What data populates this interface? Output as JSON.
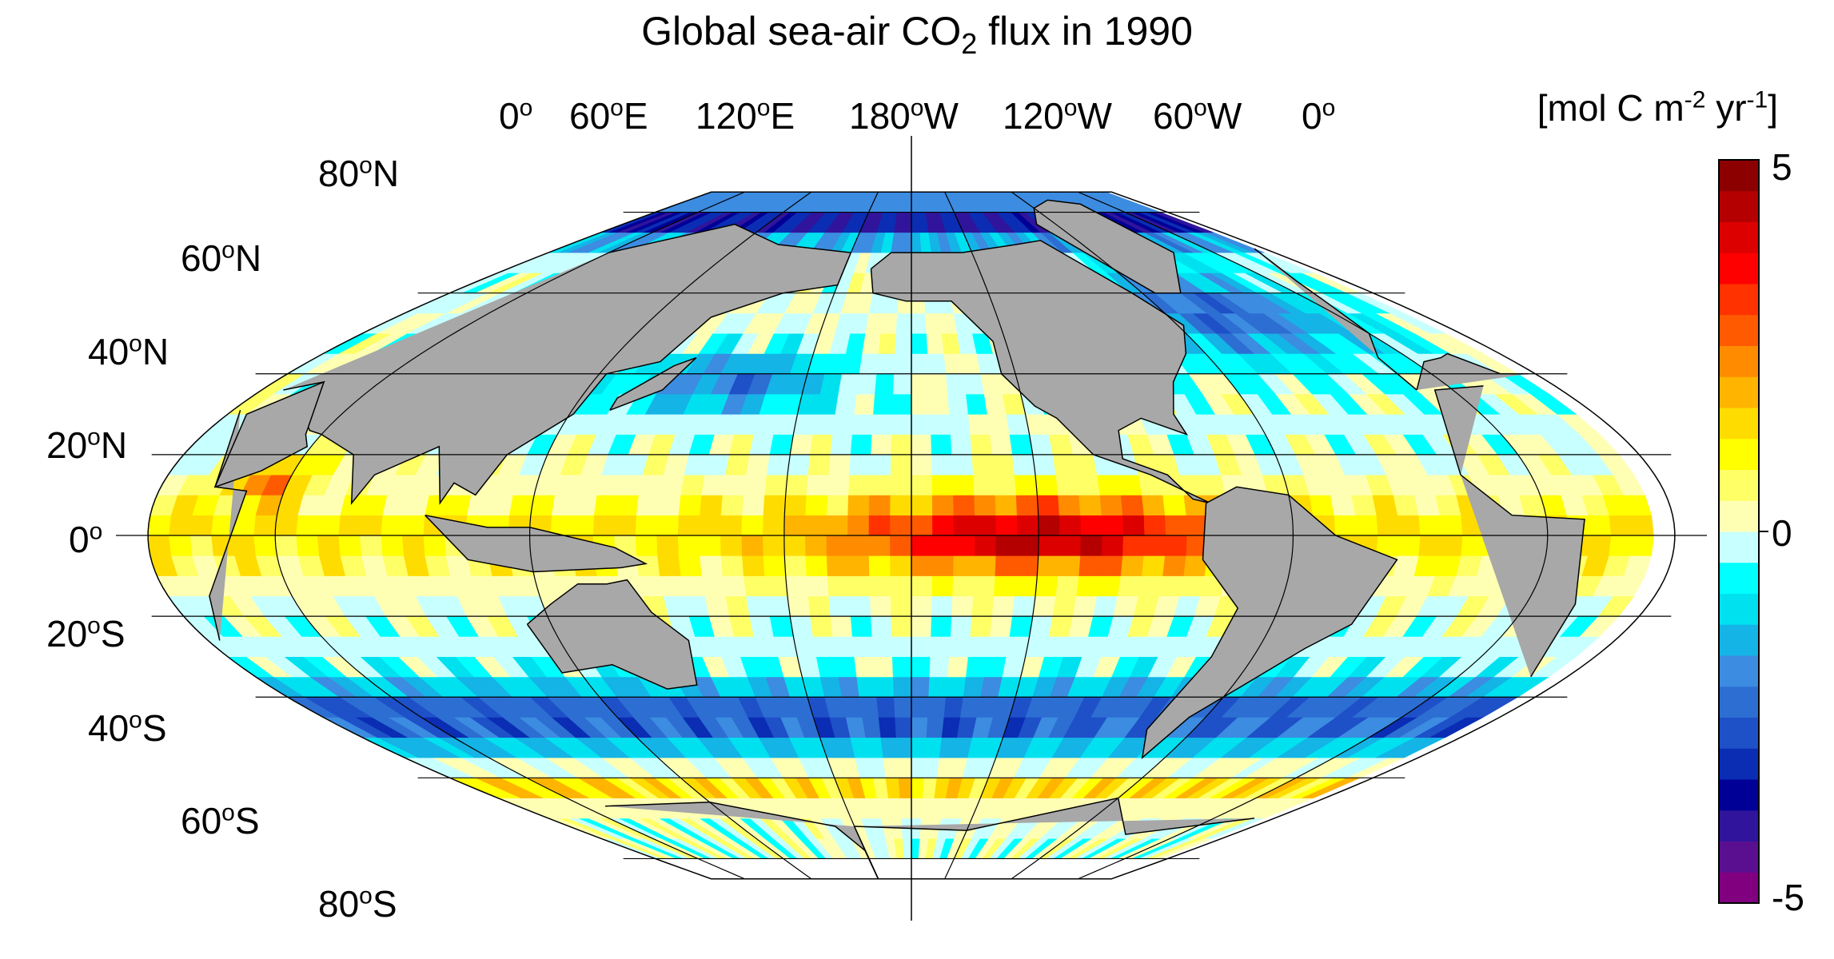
{
  "title": {
    "pre": "Global sea-air CO",
    "sub": "2",
    "post": " flux in 1990"
  },
  "units": {
    "pre": "[mol C m",
    "exp1": "-2",
    "mid": " yr",
    "exp2": "-1",
    "post": "]"
  },
  "lon_labels": [
    {
      "num": "0",
      "suf": ""
    },
    {
      "num": "60",
      "suf": "E"
    },
    {
      "num": "120",
      "suf": "E"
    },
    {
      "num": "180",
      "suf": "W"
    },
    {
      "num": "120",
      "suf": "W"
    },
    {
      "num": "60",
      "suf": "W"
    },
    {
      "num": "0",
      "suf": ""
    }
  ],
  "lat_labels": [
    {
      "num": "80",
      "suf": "N"
    },
    {
      "num": "60",
      "suf": "N"
    },
    {
      "num": "40",
      "suf": "N"
    },
    {
      "num": "20",
      "suf": "N"
    },
    {
      "num": "0",
      "suf": ""
    },
    {
      "num": "20",
      "suf": "S"
    },
    {
      "num": "40",
      "suf": "S"
    },
    {
      "num": "60",
      "suf": "S"
    },
    {
      "num": "80",
      "suf": "S"
    }
  ],
  "colorbar": {
    "max_label": "5",
    "mid_label": "0",
    "min_label": "-5",
    "range": [
      -5,
      5
    ],
    "colors": [
      "#800080",
      "#5a0f91",
      "#30149b",
      "#000096",
      "#0a2db4",
      "#1e50c8",
      "#2d6ed2",
      "#3c8ce1",
      "#14b4e6",
      "#00e1f0",
      "#00ffff",
      "#c8ffff",
      "#ffffb4",
      "#ffff66",
      "#ffff00",
      "#ffdc00",
      "#ffb400",
      "#ff8c00",
      "#ff5a00",
      "#ff3200",
      "#ff0000",
      "#dc0000",
      "#b40000",
      "#8c0000"
    ]
  },
  "map_colors": {
    "land": "#a8a8a8",
    "ocean_empty": "#ffffff",
    "coast": "#000000"
  }
}
